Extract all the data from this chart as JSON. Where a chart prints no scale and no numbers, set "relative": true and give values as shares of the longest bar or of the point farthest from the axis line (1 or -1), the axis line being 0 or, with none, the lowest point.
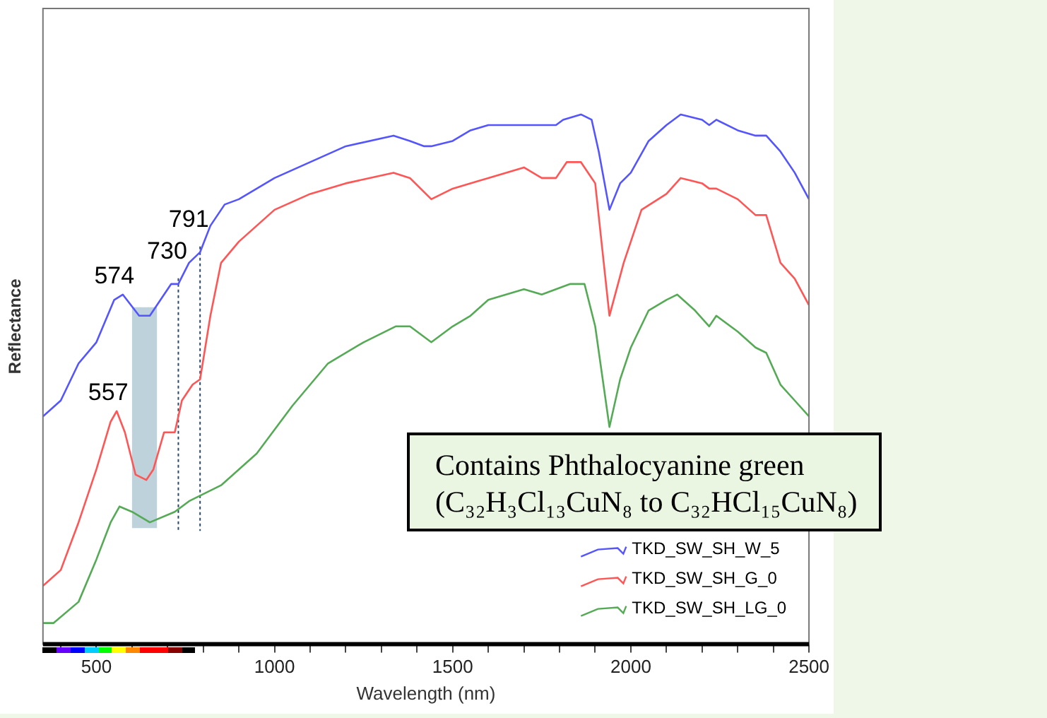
{
  "chart_data": {
    "type": "line",
    "relative": true,
    "xlabel": "Wavelength (nm)",
    "ylabel": "Reflectance",
    "xlim": [
      350,
      2500
    ],
    "xticks": [
      {
        "value": 400,
        "label": null
      },
      500,
      {
        "value": 600,
        "label": null
      },
      {
        "value": 700,
        "label": null
      },
      {
        "value": 800,
        "label": null
      },
      {
        "value": 900,
        "label": null
      },
      1000,
      {
        "value": 1100,
        "label": null
      },
      {
        "value": 1200,
        "label": null
      },
      {
        "value": 1300,
        "label": null
      },
      {
        "value": 1400,
        "label": null
      },
      1500,
      {
        "value": 1600,
        "label": null
      },
      {
        "value": 1700,
        "label": null
      },
      {
        "value": 1800,
        "label": null
      },
      {
        "value": 1900,
        "label": null
      },
      2000,
      {
        "value": 2100,
        "label": null
      },
      {
        "value": 2200,
        "label": null
      },
      {
        "value": 2300,
        "label": null
      },
      {
        "value": 2400,
        "label": null
      },
      2500
    ],
    "tick_labels": "x",
    "grid": false,
    "marker": "none",
    "line_style": "solid",
    "legend": "bottom right",
    "series": [
      {
        "name": "TKD_SW_SH_W_5",
        "color": "#5555ff",
        "x": [
          350,
          400,
          450,
          500,
          550,
          574,
          620,
          650,
          680,
          710,
          730,
          760,
          791,
          820,
          860,
          900,
          1000,
          1100,
          1200,
          1334,
          1380,
          1420,
          1440,
          1500,
          1550,
          1600,
          1700,
          1750,
          1790,
          1810,
          1860,
          1890,
          1910,
          1940,
          1970,
          2000,
          2050,
          2100,
          2140,
          2200,
          2220,
          2240,
          2300,
          2350,
          2380,
          2420,
          2460,
          2500
        ],
        "values": [
          0.43,
          0.46,
          0.53,
          0.57,
          0.65,
          0.66,
          0.62,
          0.62,
          0.65,
          0.68,
          0.68,
          0.72,
          0.74,
          0.79,
          0.83,
          0.84,
          0.88,
          0.91,
          0.94,
          0.96,
          0.95,
          0.94,
          0.94,
          0.95,
          0.97,
          0.98,
          0.98,
          0.98,
          0.98,
          0.99,
          1,
          0.99,
          0.93,
          0.82,
          0.87,
          0.89,
          0.95,
          0.98,
          1,
          0.99,
          0.98,
          0.99,
          0.97,
          0.96,
          0.96,
          0.93,
          0.89,
          0.84
        ]
      },
      {
        "name": "TKD_SW_SH_G_0",
        "color": "#ff5555",
        "x": [
          350,
          400,
          450,
          500,
          540,
          557,
          580,
          610,
          640,
          660,
          690,
          720,
          740,
          770,
          791,
          820,
          850,
          900,
          1000,
          1100,
          1200,
          1334,
          1380,
          1440,
          1500,
          1600,
          1700,
          1750,
          1790,
          1820,
          1860,
          1900,
          1940,
          1980,
          2030,
          2100,
          2140,
          2200,
          2220,
          2240,
          2300,
          2350,
          2380,
          2420,
          2460,
          2500
        ],
        "values": [
          0.11,
          0.14,
          0.23,
          0.33,
          0.42,
          0.44,
          0.4,
          0.32,
          0.31,
          0.33,
          0.4,
          0.4,
          0.46,
          0.49,
          0.5,
          0.62,
          0.72,
          0.76,
          0.82,
          0.85,
          0.87,
          0.89,
          0.88,
          0.84,
          0.86,
          0.88,
          0.9,
          0.88,
          0.88,
          0.91,
          0.91,
          0.87,
          0.62,
          0.72,
          0.82,
          0.85,
          0.88,
          0.87,
          0.86,
          0.86,
          0.84,
          0.81,
          0.81,
          0.72,
          0.69,
          0.64
        ]
      },
      {
        "name": "TKD_SW_SH_LG_0",
        "color": "#55aa55",
        "x": [
          350,
          380,
          450,
          500,
          540,
          565,
          600,
          650,
          720,
          760,
          850,
          950,
          1050,
          1150,
          1250,
          1340,
          1380,
          1420,
          1440,
          1500,
          1550,
          1600,
          1700,
          1750,
          1790,
          1830,
          1870,
          1900,
          1940,
          1970,
          2000,
          2050,
          2100,
          2130,
          2180,
          2220,
          2240,
          2300,
          2350,
          2380,
          2420,
          2460,
          2500
        ],
        "values": [
          0.04,
          0.04,
          0.08,
          0.16,
          0.23,
          0.26,
          0.25,
          0.23,
          0.25,
          0.27,
          0.3,
          0.36,
          0.45,
          0.53,
          0.57,
          0.6,
          0.6,
          0.58,
          0.57,
          0.6,
          0.62,
          0.65,
          0.67,
          0.66,
          0.67,
          0.68,
          0.68,
          0.6,
          0.41,
          0.5,
          0.56,
          0.63,
          0.65,
          0.66,
          0.63,
          0.6,
          0.62,
          0.59,
          0.56,
          0.55,
          0.49,
          0.46,
          0.43
        ]
      }
    ],
    "bands": [
      {
        "axis": "x",
        "from": 600,
        "to": 670,
        "color": "#b7cdd8"
      }
    ],
    "ref_lines": [
      {
        "axis": "x",
        "value": 730,
        "label": "730",
        "line_style": "dotted",
        "color": "#2a4a6a"
      },
      {
        "axis": "x",
        "value": 791,
        "label": "791",
        "line_style": "dotted",
        "color": "#2a4a6a"
      }
    ],
    "annotations": [
      {
        "text": "574",
        "x": 574,
        "y": 0.66
      },
      {
        "text": "557",
        "x": 557,
        "y": 0.44
      },
      "Contains Phthalocyanine green\n(C₃₂H₃Cl₁₃CuN₈ to C₃₂HCl₁₅CuN₈)"
    ]
  }
}
